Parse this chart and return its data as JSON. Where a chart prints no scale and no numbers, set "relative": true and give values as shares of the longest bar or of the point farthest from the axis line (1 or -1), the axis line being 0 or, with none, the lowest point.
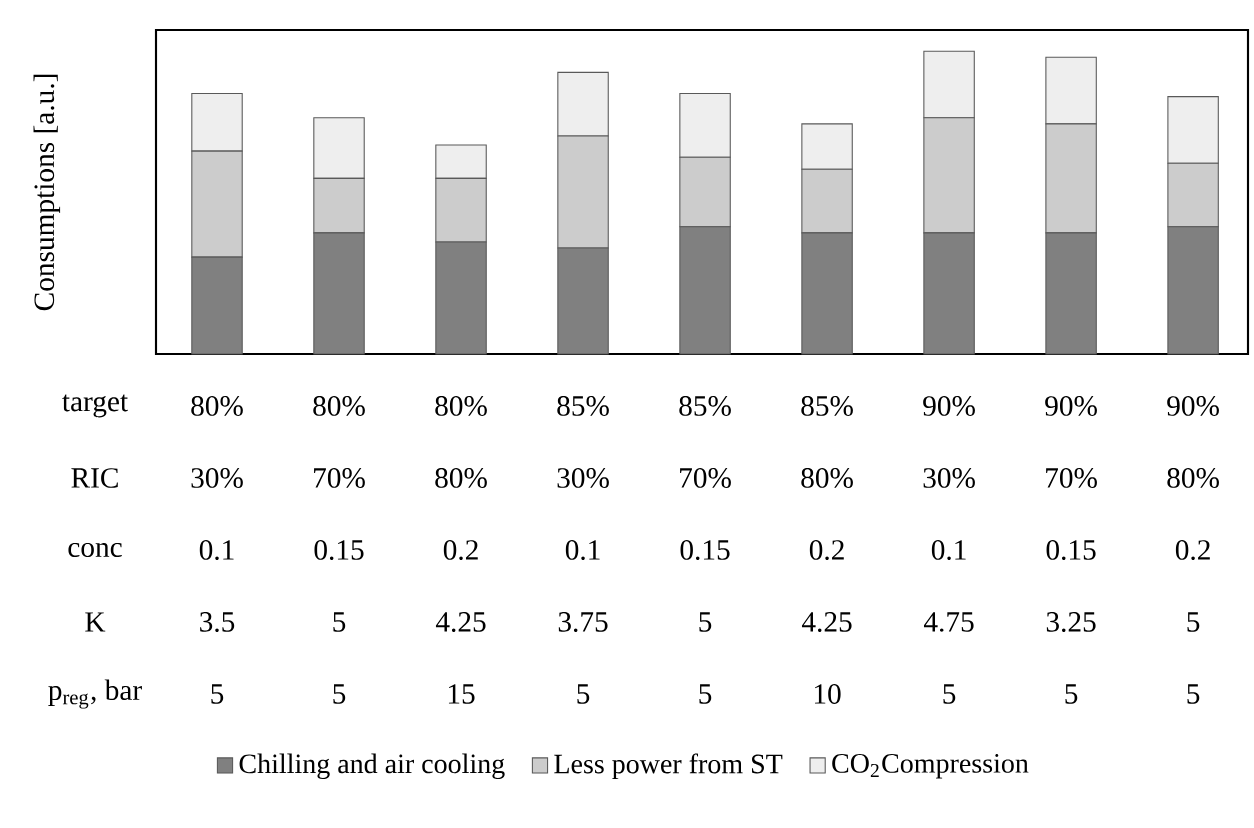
{
  "chart_data": {
    "type": "bar",
    "stacked": true,
    "relative": true,
    "ylabel": "Consumptions [a.u.]",
    "categories": [
      null,
      null,
      null,
      null,
      null,
      null,
      null,
      null,
      null
    ],
    "series": [
      {
        "name": "Chilling and air cooling",
        "color": "#808080",
        "values": [
          0.32,
          0.4,
          0.37,
          0.35,
          0.42,
          0.4,
          0.4,
          0.4,
          0.42
        ]
      },
      {
        "name": "Less power from ST",
        "color": "#cccccc",
        "values": [
          0.35,
          0.18,
          0.21,
          0.37,
          0.23,
          0.21,
          0.38,
          0.36,
          0.21
        ]
      },
      {
        "name": "CO$_{2}$Compression",
        "color": "#eeeeee",
        "values": [
          0.19,
          0.2,
          0.11,
          0.21,
          0.21,
          0.15,
          0.22,
          0.22,
          0.22
        ]
      }
    ],
    "legend": "bottom",
    "annotations": [
      "target",
      "80%",
      "80%",
      "80%",
      "85%",
      "85%",
      "85%",
      "90%",
      "90%",
      "90%",
      "RIC",
      "30%",
      "70%",
      "80%",
      "30%",
      "70%",
      "80%",
      "30%",
      "70%",
      "80%",
      "conc",
      "0.1",
      "0.15",
      "0.2",
      "0.1",
      "0.15",
      "0.2",
      "0.1",
      "0.15",
      "0.2",
      "K",
      "3.5",
      "5",
      "4.25",
      "3.75",
      "5",
      "4.25",
      "4.75",
      "3.25",
      "5",
      "p$_{reg}$, bar",
      "5",
      "5",
      "15",
      "5",
      "5",
      "10",
      "5",
      "5",
      "5"
    ]
  }
}
